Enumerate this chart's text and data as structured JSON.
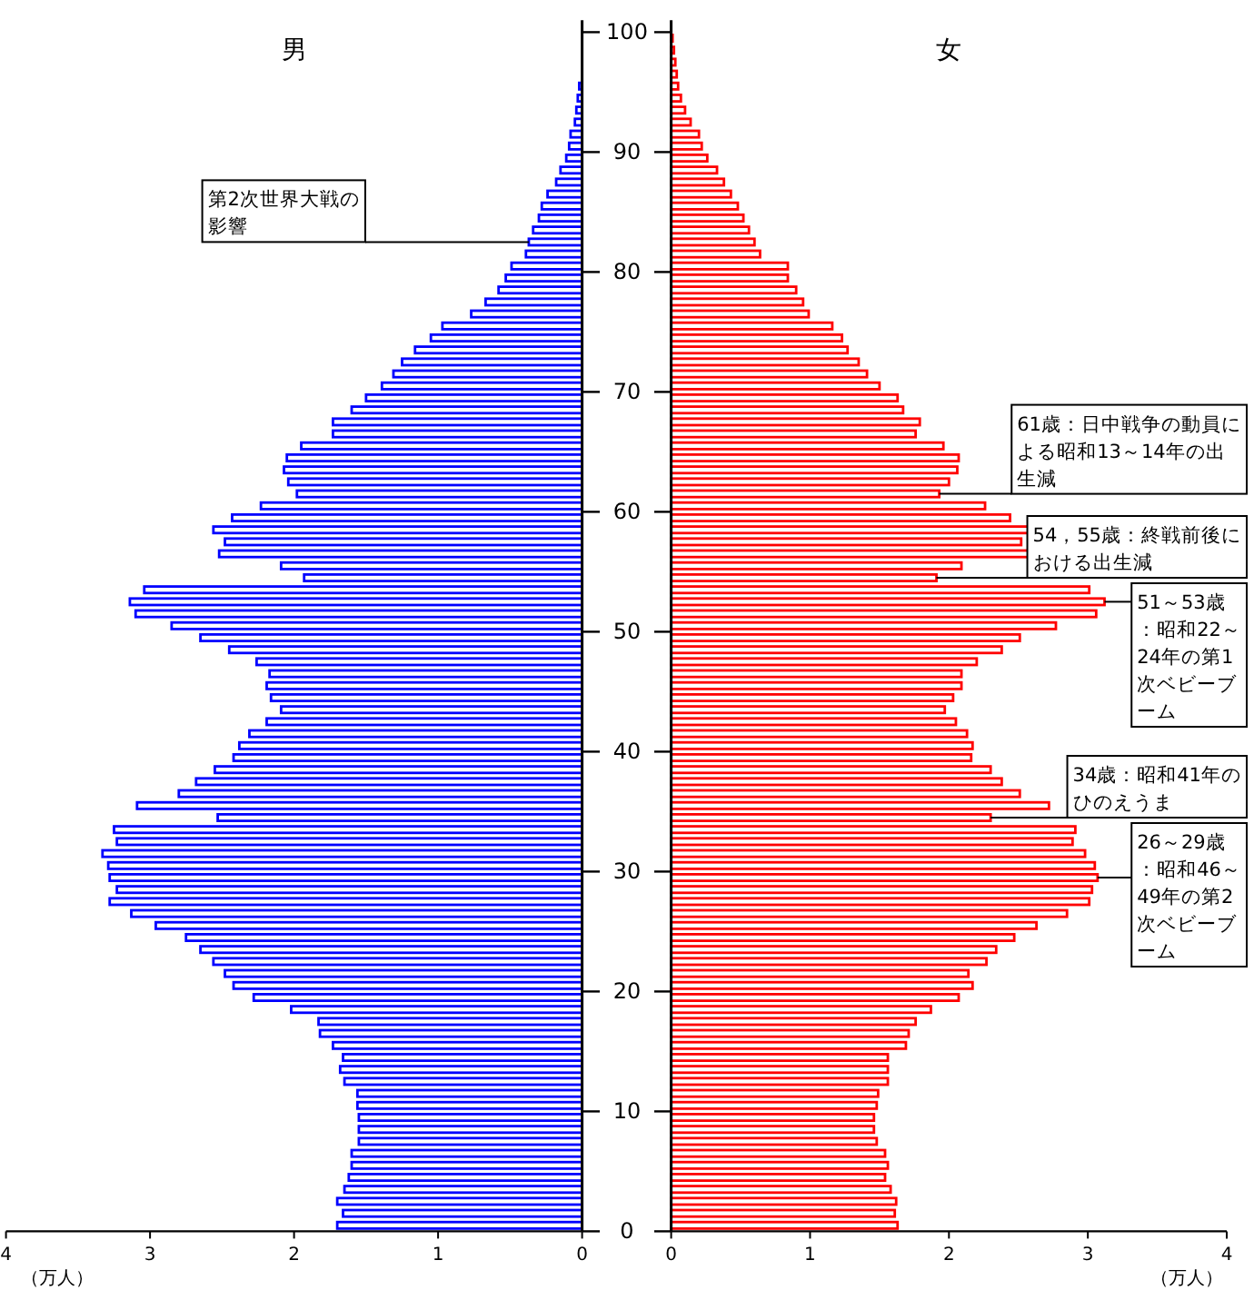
{
  "chart_data": [
    {
      "type": "bar",
      "orientation": "horizontal",
      "title": "男",
      "xlabel": "（万人）",
      "x": [
        0.5,
        1.5,
        2.5,
        3.5,
        4.5,
        5.5,
        6.5,
        7.5,
        8.5,
        9.5,
        10.5,
        11.5,
        12.5,
        13.5,
        14.5,
        15.5,
        16.5,
        17.5,
        18.5,
        19.5,
        20.5,
        21.5,
        22.5,
        23.5,
        24.5,
        25.5,
        26.5,
        27.5,
        28.5,
        29.5,
        30.5,
        31.5,
        32.5,
        33.5,
        34.5,
        35.5,
        36.5,
        37.5,
        38.5,
        39.5,
        40.5,
        41.5,
        42.5,
        43.5,
        44.5,
        45.5,
        46.5,
        47.5,
        48.5,
        49.5,
        50.5,
        51.5,
        52.5,
        53.5,
        54.5,
        55.5,
        56.5,
        57.5,
        58.5,
        59.5,
        60.5,
        61.5,
        62.5,
        63.5,
        64.5,
        65.5,
        66.5,
        67.5,
        68.5,
        69.5,
        70.5,
        71.5,
        72.5,
        73.5,
        74.5,
        75.5,
        76.5,
        77.5,
        78.5,
        79.5,
        80.5,
        81.5,
        82.5,
        83.5,
        84.5,
        85.5,
        86.5,
        87.5,
        88.5,
        89.5,
        90.5,
        91.5,
        92.5,
        93.5,
        94.5,
        95.5
      ],
      "series": [
        {
          "color": "#0000ff",
          "values": [
            1.7,
            1.66,
            1.7,
            1.65,
            1.62,
            1.6,
            1.6,
            1.55,
            1.55,
            1.55,
            1.56,
            1.56,
            1.65,
            1.68,
            1.66,
            1.73,
            1.82,
            1.83,
            2.02,
            2.28,
            2.42,
            2.48,
            2.56,
            2.65,
            2.75,
            2.96,
            3.13,
            3.28,
            3.23,
            3.28,
            3.29,
            3.33,
            3.23,
            3.25,
            2.53,
            3.09,
            2.8,
            2.68,
            2.55,
            2.42,
            2.38,
            2.31,
            2.19,
            2.09,
            2.16,
            2.19,
            2.17,
            2.26,
            2.45,
            2.65,
            2.85,
            3.1,
            3.14,
            3.04,
            1.93,
            2.09,
            2.52,
            2.48,
            2.56,
            2.43,
            2.23,
            1.98,
            2.04,
            2.07,
            2.05,
            1.95,
            1.73,
            1.73,
            1.6,
            1.5,
            1.39,
            1.31,
            1.25,
            1.16,
            1.05,
            0.97,
            0.77,
            0.67,
            0.58,
            0.53,
            0.49,
            0.39,
            0.37,
            0.34,
            0.3,
            0.28,
            0.24,
            0.18,
            0.15,
            0.11,
            0.09,
            0.08,
            0.05,
            0.04,
            0.03,
            0.02
          ]
        }
      ],
      "xlim": [
        4,
        0
      ],
      "xticks": [
        0,
        1,
        2,
        3,
        4
      ],
      "ylim": [
        0,
        101
      ],
      "yticks": [
        0,
        10,
        20,
        30,
        40,
        50,
        60,
        70,
        80,
        90,
        100
      ],
      "annotations": [
        {
          "text": "第2次世界大戦の影響",
          "x": 0.37,
          "y": 82.5
        }
      ]
    },
    {
      "type": "bar",
      "orientation": "horizontal",
      "title": "女",
      "xlabel": "（万人）",
      "x": [
        0.5,
        1.5,
        2.5,
        3.5,
        4.5,
        5.5,
        6.5,
        7.5,
        8.5,
        9.5,
        10.5,
        11.5,
        12.5,
        13.5,
        14.5,
        15.5,
        16.5,
        17.5,
        18.5,
        19.5,
        20.5,
        21.5,
        22.5,
        23.5,
        24.5,
        25.5,
        26.5,
        27.5,
        28.5,
        29.5,
        30.5,
        31.5,
        32.5,
        33.5,
        34.5,
        35.5,
        36.5,
        37.5,
        38.5,
        39.5,
        40.5,
        41.5,
        42.5,
        43.5,
        44.5,
        45.5,
        46.5,
        47.5,
        48.5,
        49.5,
        50.5,
        51.5,
        52.5,
        53.5,
        54.5,
        55.5,
        56.5,
        57.5,
        58.5,
        59.5,
        60.5,
        61.5,
        62.5,
        63.5,
        64.5,
        65.5,
        66.5,
        67.5,
        68.5,
        69.5,
        70.5,
        71.5,
        72.5,
        73.5,
        74.5,
        75.5,
        76.5,
        77.5,
        78.5,
        79.5,
        80.5,
        81.5,
        82.5,
        83.5,
        84.5,
        85.5,
        86.5,
        87.5,
        88.5,
        89.5,
        90.5,
        91.5,
        92.5,
        93.5,
        94.5,
        95.5,
        96.5,
        97.5,
        98.5,
        99.5
      ],
      "series": [
        {
          "color": "#ff0000",
          "values": [
            1.63,
            1.61,
            1.62,
            1.58,
            1.54,
            1.56,
            1.54,
            1.48,
            1.46,
            1.46,
            1.48,
            1.49,
            1.56,
            1.56,
            1.56,
            1.69,
            1.71,
            1.76,
            1.87,
            2.07,
            2.17,
            2.14,
            2.27,
            2.34,
            2.47,
            2.63,
            2.85,
            3.01,
            3.03,
            3.07,
            3.05,
            2.98,
            2.89,
            2.91,
            2.3,
            2.72,
            2.51,
            2.38,
            2.3,
            2.16,
            2.17,
            2.13,
            2.05,
            1.97,
            2.03,
            2.09,
            2.09,
            2.2,
            2.38,
            2.51,
            2.77,
            3.06,
            3.12,
            3.01,
            1.91,
            2.09,
            2.58,
            2.52,
            2.59,
            2.44,
            2.26,
            1.93,
            2.0,
            2.06,
            2.07,
            1.96,
            1.76,
            1.79,
            1.67,
            1.63,
            1.5,
            1.41,
            1.35,
            1.27,
            1.23,
            1.16,
            0.99,
            0.95,
            0.9,
            0.84,
            0.84,
            0.64,
            0.6,
            0.56,
            0.52,
            0.48,
            0.43,
            0.38,
            0.33,
            0.26,
            0.22,
            0.2,
            0.14,
            0.1,
            0.07,
            0.05,
            0.04,
            0.03,
            0.02,
            0.01
          ]
        }
      ],
      "xlim": [
        0,
        4
      ],
      "xticks": [
        0,
        1,
        2,
        3,
        4
      ],
      "ylim": [
        0,
        101
      ],
      "yticks": [
        0,
        10,
        20,
        30,
        40,
        50,
        60,
        70,
        80,
        90,
        100
      ],
      "tick_labels": "x",
      "annotations": [
        {
          "text": "61歳：日中戦争の動員による昭和13～14年の出生減",
          "x": 1.93,
          "y": 61.5
        },
        {
          "text": "54，55歳：終戦前後における出生減",
          "x": 1.91,
          "y": 54.5
        },
        {
          "text": "51～53歳：昭和22～24年の第1次ベビーブーム",
          "x": 3.12,
          "y": 52.5
        },
        {
          "text": "34歳：昭和41年のひのえうま",
          "x": 2.3,
          "y": 34.5
        },
        {
          "text": "26～29歳：昭和46～49年の第2次ベビーブーム",
          "x": 3.07,
          "y": 29.5
        }
      ]
    }
  ]
}
